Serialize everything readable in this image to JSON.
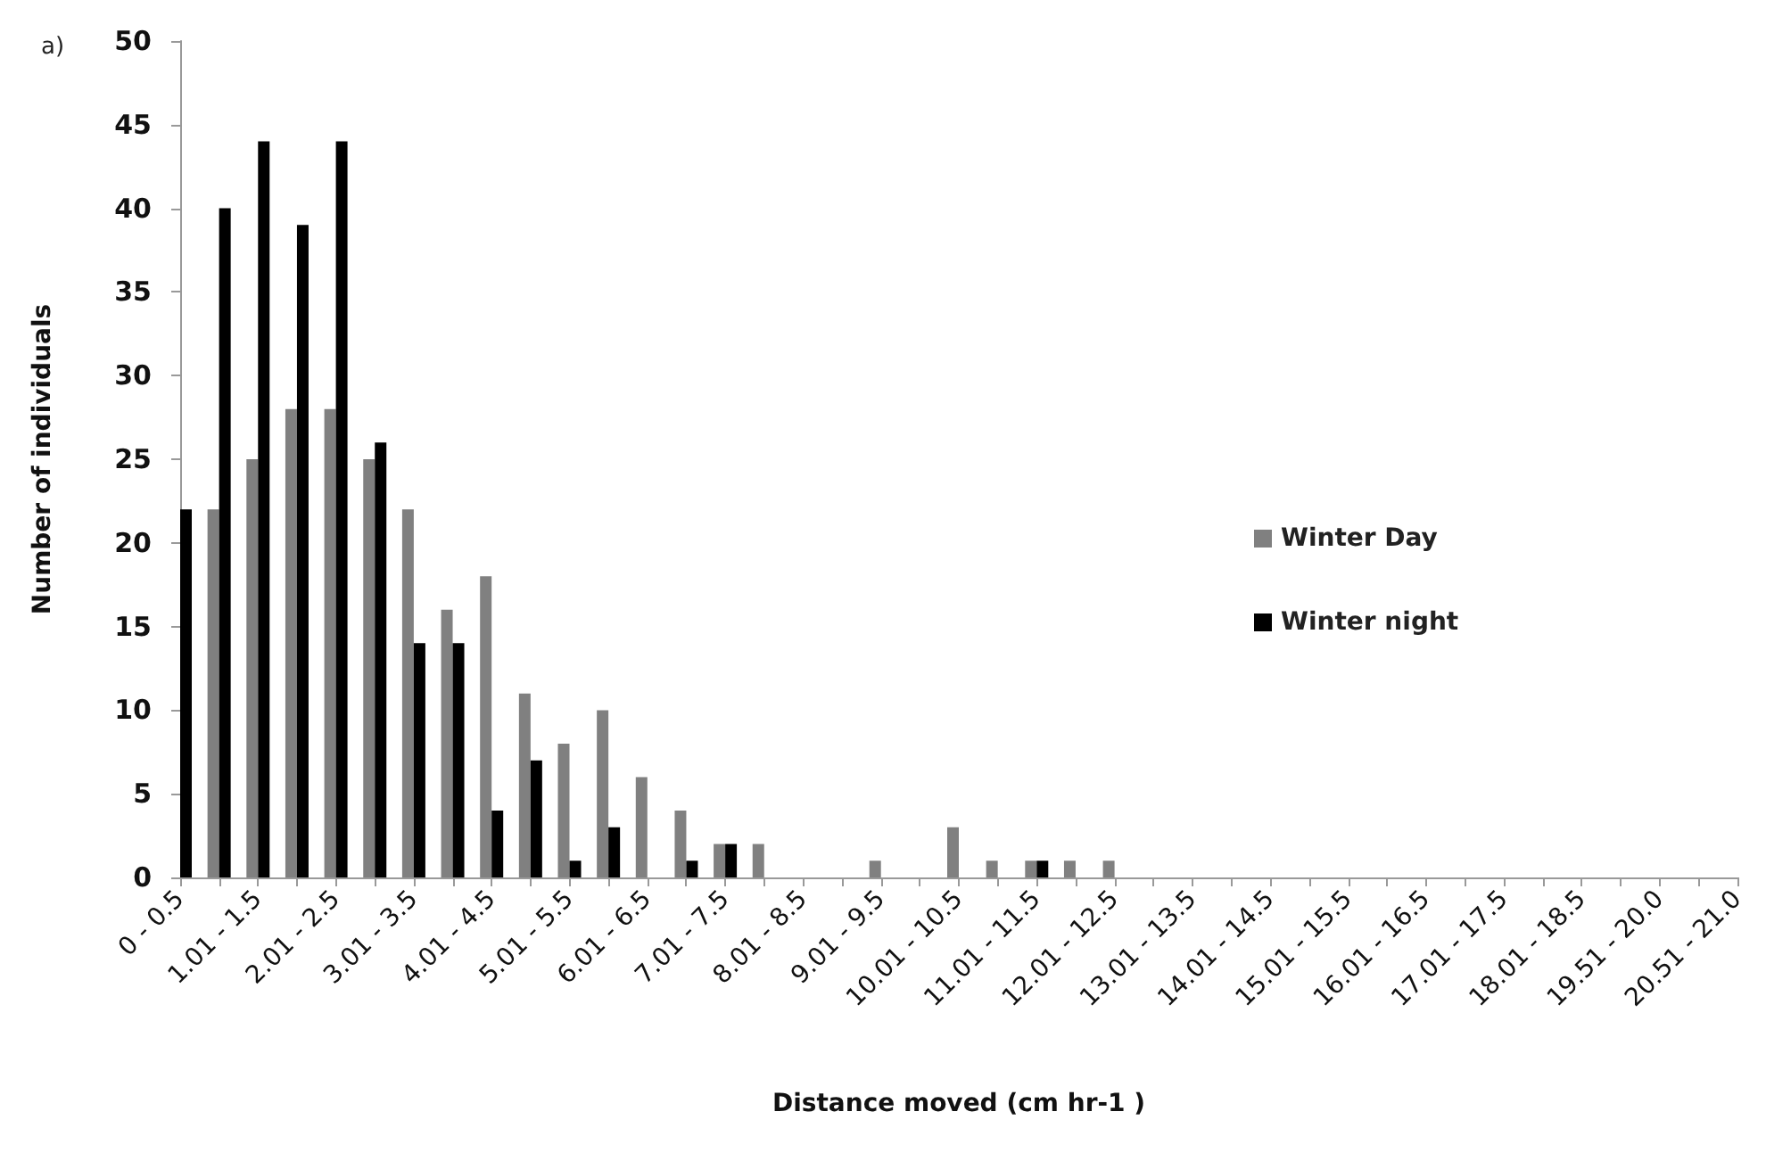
{
  "chart_data": {
    "type": "bar",
    "annotations": [
      "a)"
    ],
    "xlabel": "Distance moved (cm hr-1 )",
    "ylabel": "Number of individuals",
    "categories": [
      "0 - 0.5",
      null,
      "1.01 - 1.5",
      null,
      "2.01 - 2.5",
      null,
      "3.01 - 3.5",
      null,
      "4.01 - 4.5",
      null,
      "5.01 - 5.5",
      null,
      "6.01 - 6.5",
      null,
      "7.01 - 7.5",
      null,
      "8.01 - 8.5",
      null,
      "9.01 - 9.5",
      null,
      "10.01 - 10.5",
      null,
      "11.01 - 11.5",
      null,
      "12.01 - 12.5",
      null,
      "13.01 - 13.5",
      null,
      "14.01 - 14.5",
      null,
      "15.01 - 15.5",
      null,
      "16.01 - 16.5",
      null,
      "17.01 - 17.5",
      null,
      "18.01 - 18.5",
      null,
      "19.51 - 20.0",
      null,
      "20.51 - 21.0"
    ],
    "series": [
      {
        "name": "Winter Day",
        "color": "#808080",
        "values": [
          null,
          22,
          25,
          28,
          28,
          25,
          22,
          16,
          18,
          11,
          8,
          10,
          6,
          4,
          2,
          2,
          0,
          0,
          1,
          0,
          3,
          1,
          1,
          1,
          1,
          0,
          0,
          0,
          0,
          0,
          0,
          0,
          0,
          0,
          0,
          0,
          0,
          0,
          0,
          0,
          0
        ]
      },
      {
        "name": "Winter night",
        "color": "#000000",
        "values": [
          22,
          40,
          44,
          39,
          44,
          26,
          14,
          14,
          4,
          7,
          1,
          3,
          0,
          1,
          2,
          0,
          0,
          0,
          0,
          0,
          0,
          0,
          1,
          0,
          0,
          0,
          0,
          0,
          0,
          0,
          0,
          0,
          0,
          0,
          0,
          0,
          0,
          0,
          0,
          0,
          0
        ]
      }
    ],
    "ylim": [
      0,
      50
    ],
    "yticks": [
      0,
      5,
      10,
      15,
      20,
      25,
      30,
      35,
      40,
      45,
      50
    ],
    "grid": false,
    "legend": "right"
  }
}
